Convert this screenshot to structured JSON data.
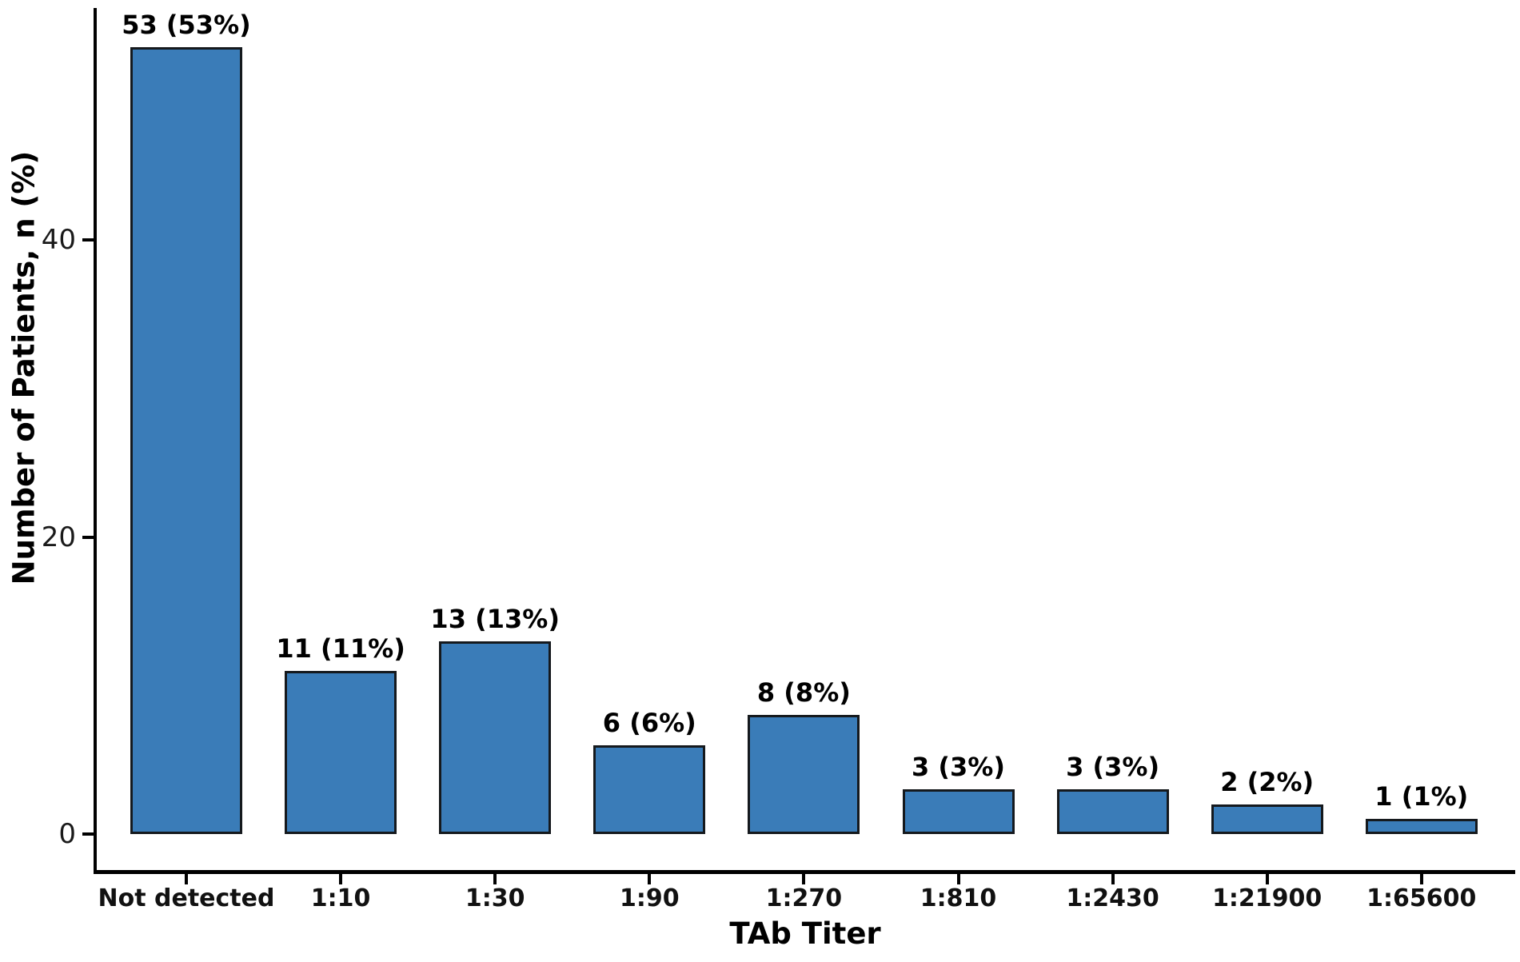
{
  "chart_data": {
    "type": "bar",
    "title": "",
    "xlabel": "TAb Titer",
    "ylabel": "Number of Patients, n (%)",
    "categories": [
      "Not detected",
      "1:10",
      "1:30",
      "1:90",
      "1:270",
      "1:810",
      "1:2430",
      "1:21900",
      "1:65600"
    ],
    "values": [
      53,
      11,
      13,
      6,
      8,
      3,
      3,
      2,
      1
    ],
    "bar_labels": [
      "53 (53%)",
      "11 (11%)",
      "13 (13%)",
      "6 (6%)",
      "8 (8%)",
      "3 (3%)",
      "3 (3%)",
      "2 (2%)",
      "1 (1%)"
    ],
    "y_ticks": [
      {
        "value": 0,
        "label": "0"
      },
      {
        "value": 20,
        "label": "20"
      },
      {
        "value": 40,
        "label": "40"
      }
    ],
    "ylim": [
      0,
      55.5
    ],
    "grid": false,
    "legend": false,
    "colors": {
      "bar_fill": "#3a7cb8",
      "bar_edge": "#15191d",
      "axis": "#000000",
      "tick_text": "#1a1a1a",
      "label_text": "#000000",
      "background": "#ffffff"
    }
  }
}
